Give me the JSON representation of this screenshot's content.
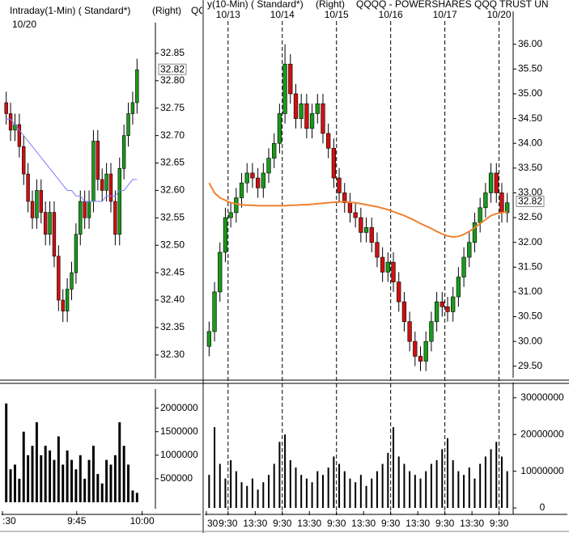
{
  "chart_data": [
    {
      "type": "candlestick",
      "title": "Intraday(1-Min) ( Standard*)",
      "scale_note": "(Right)",
      "symbol": "QQ",
      "date": "10/20",
      "open": [
        32.76,
        32.74,
        32.71,
        32.72,
        32.68,
        32.63,
        32.58,
        32.55,
        32.6,
        32.56,
        32.52,
        32.56,
        32.48,
        32.4,
        32.38,
        32.42,
        32.45,
        32.52,
        32.58,
        32.55,
        32.58,
        32.69,
        32.62,
        32.6,
        32.63,
        32.58,
        32.52,
        32.64,
        32.7,
        32.74,
        32.76
      ],
      "high": [
        32.78,
        32.76,
        32.74,
        32.74,
        32.7,
        32.65,
        32.6,
        32.62,
        32.62,
        32.58,
        32.58,
        32.58,
        32.5,
        32.42,
        32.44,
        32.47,
        32.54,
        32.6,
        32.6,
        32.6,
        32.71,
        32.71,
        32.64,
        32.65,
        32.65,
        32.6,
        32.66,
        32.72,
        32.76,
        32.78,
        32.84
      ],
      "low": [
        32.72,
        32.69,
        32.69,
        32.66,
        32.61,
        32.56,
        32.53,
        32.53,
        32.54,
        32.5,
        32.5,
        32.46,
        32.38,
        32.36,
        32.36,
        32.4,
        32.43,
        32.5,
        32.53,
        32.53,
        32.56,
        32.6,
        32.58,
        32.58,
        32.56,
        32.5,
        32.5,
        32.62,
        32.68,
        32.72,
        32.74
      ],
      "close": [
        32.74,
        32.71,
        32.72,
        32.68,
        32.63,
        32.58,
        32.55,
        32.6,
        32.56,
        32.52,
        32.56,
        32.48,
        32.4,
        32.38,
        32.42,
        32.45,
        32.52,
        32.58,
        32.55,
        32.58,
        32.69,
        32.62,
        32.6,
        32.63,
        32.58,
        32.52,
        32.64,
        32.7,
        32.74,
        32.76,
        32.82
      ],
      "ma": [
        32.73,
        32.73,
        32.72,
        32.71,
        32.7,
        32.69,
        32.68,
        32.67,
        32.66,
        32.65,
        32.64,
        32.63,
        32.62,
        32.61,
        32.6,
        32.6,
        32.59,
        32.59,
        32.58,
        32.58,
        32.58,
        32.58,
        32.58,
        32.59,
        32.59,
        32.59,
        32.6,
        32.6,
        32.61,
        32.62,
        32.62
      ],
      "ma_color": "#7a7aff",
      "up_color": "#1a9a1a",
      "down_color": "#d01010",
      "volume": [
        2100000,
        700000,
        800000,
        500000,
        1500000,
        1000000,
        1200000,
        1700000,
        1000000,
        1200000,
        1100000,
        900000,
        1400000,
        800000,
        1100000,
        900000,
        700000,
        1000000,
        500000,
        900000,
        1200000,
        600000,
        400000,
        900000,
        800000,
        1000000,
        1700000,
        1200000,
        800000,
        250000,
        200000
      ],
      "ylim": [
        32.26,
        32.9
      ],
      "yticks": [
        {
          "value": 32.3,
          "label": "32.30"
        },
        32.35,
        {
          "value": 32.4,
          "label": "32.40"
        },
        32.45,
        {
          "value": 32.5,
          "label": "32.50"
        },
        32.55,
        {
          "value": 32.6,
          "label": "32.60"
        },
        32.65,
        {
          "value": 32.7,
          "label": "32.70"
        },
        32.75,
        {
          "value": 32.8,
          "label": "32.80"
        },
        32.85
      ],
      "last": 32.82,
      "volume_ylim": [
        0,
        2200000
      ],
      "volume_ticks": [
        500000,
        1000000,
        1500000,
        2000000
      ],
      "x_labels": [
        ":30",
        "9:45",
        "10:00"
      ]
    },
    {
      "type": "candlestick",
      "title": "y(10-Min) ( Standard*)",
      "scale_note": "(Right)",
      "symbol": "QQQQ - POWERSHARES QQQ TRUST UN",
      "dates": [
        "10/13",
        "10/14",
        "10/15",
        "10/16",
        "10/17",
        "10/20"
      ],
      "open": [
        29.9,
        30.2,
        31.0,
        31.8,
        32.5,
        32.6,
        32.9,
        33.2,
        33.4,
        33.3,
        33.1,
        33.4,
        33.7,
        34.0,
        34.6,
        35.6,
        35.0,
        34.5,
        34.8,
        34.3,
        34.6,
        34.8,
        34.2,
        33.9,
        33.3,
        33.0,
        32.8,
        32.6,
        32.5,
        32.2,
        32.3,
        32.0,
        31.7,
        31.4,
        31.6,
        31.2,
        30.8,
        30.4,
        30.0,
        29.7,
        29.6,
        30.0,
        30.4,
        30.8,
        30.7,
        30.6,
        30.9,
        31.3,
        31.7,
        32.0,
        32.4,
        32.7,
        33.0,
        33.4,
        33.0,
        32.6
      ],
      "high": [
        30.4,
        31.2,
        32.0,
        32.7,
        32.8,
        33.1,
        33.4,
        33.6,
        33.6,
        33.5,
        33.6,
        33.9,
        34.2,
        34.8,
        36.0,
        35.8,
        35.2,
        35.0,
        35.0,
        34.8,
        35.0,
        35.0,
        34.4,
        34.1,
        33.5,
        33.2,
        33.0,
        32.8,
        32.7,
        32.5,
        32.5,
        32.2,
        31.9,
        31.8,
        31.8,
        31.4,
        31.0,
        30.6,
        30.2,
        29.9,
        30.2,
        30.6,
        31.0,
        31.0,
        30.9,
        31.1,
        31.5,
        31.9,
        32.2,
        32.6,
        32.9,
        33.2,
        33.6,
        33.6,
        33.2,
        33.0
      ],
      "low": [
        29.7,
        30.0,
        30.8,
        31.6,
        32.3,
        32.4,
        32.7,
        33.0,
        33.1,
        32.9,
        32.9,
        33.2,
        33.5,
        33.8,
        34.4,
        34.8,
        34.3,
        34.3,
        34.1,
        34.1,
        34.4,
        34.0,
        33.7,
        33.1,
        32.8,
        32.6,
        32.4,
        32.3,
        32.0,
        32.0,
        31.8,
        31.5,
        31.2,
        31.2,
        31.0,
        30.6,
        30.2,
        29.8,
        29.5,
        29.4,
        29.4,
        29.8,
        30.2,
        30.5,
        30.4,
        30.4,
        30.7,
        31.1,
        31.5,
        31.8,
        32.2,
        32.5,
        32.8,
        32.8,
        32.4,
        32.4
      ],
      "close": [
        30.2,
        31.0,
        31.8,
        32.5,
        32.6,
        32.9,
        33.2,
        33.4,
        33.3,
        33.1,
        33.4,
        33.7,
        34.0,
        34.6,
        35.6,
        35.0,
        34.5,
        34.8,
        34.3,
        34.6,
        34.8,
        34.2,
        33.9,
        33.3,
        33.0,
        32.8,
        32.6,
        32.5,
        32.2,
        32.3,
        32.0,
        31.7,
        31.4,
        31.6,
        31.2,
        30.8,
        30.4,
        30.0,
        29.7,
        29.6,
        30.0,
        30.4,
        30.8,
        30.7,
        30.6,
        30.9,
        31.3,
        31.7,
        32.0,
        32.4,
        32.7,
        33.0,
        33.4,
        33.0,
        32.6,
        32.8
      ],
      "ma": [
        33.2,
        33.0,
        32.9,
        32.85,
        32.8,
        32.78,
        32.76,
        32.75,
        32.75,
        32.74,
        32.74,
        32.74,
        32.74,
        32.74,
        32.74,
        32.75,
        32.75,
        32.76,
        32.76,
        32.77,
        32.78,
        32.79,
        32.8,
        32.81,
        32.82,
        32.82,
        32.81,
        32.8,
        32.78,
        32.76,
        32.74,
        32.72,
        32.69,
        32.66,
        32.62,
        32.58,
        32.54,
        32.49,
        32.44,
        32.38,
        32.33,
        32.28,
        32.22,
        32.17,
        32.13,
        32.11,
        32.12,
        32.16,
        32.22,
        32.3,
        32.38,
        32.46,
        32.54,
        32.58,
        32.6,
        32.62
      ],
      "ma_color": "#f08030",
      "up_color": "#1a9a1a",
      "down_color": "#d01010",
      "volume": [
        9000000,
        22000000,
        12000000,
        8000000,
        13000000,
        10000000,
        7000000,
        6000000,
        8000000,
        5000000,
        7000000,
        9000000,
        12000000,
        18000000,
        20000000,
        13000000,
        11000000,
        9000000,
        8000000,
        7000000,
        10000000,
        9000000,
        11000000,
        14000000,
        12000000,
        10000000,
        8000000,
        7000000,
        9000000,
        6000000,
        8000000,
        10000000,
        12000000,
        15000000,
        22000000,
        14000000,
        12000000,
        10000000,
        9000000,
        8000000,
        10000000,
        12000000,
        13000000,
        16000000,
        19000000,
        13000000,
        10000000,
        9000000,
        11000000,
        8000000,
        12000000,
        14000000,
        16000000,
        18000000,
        14000000,
        10000000
      ],
      "ylim": [
        29.3,
        36.6
      ],
      "yticks": [
        {
          "value": 29.5,
          "label": "29.50"
        },
        {
          "value": 30,
          "label": "30.00"
        },
        {
          "value": 30.5,
          "label": "30.50"
        },
        {
          "value": 31,
          "label": "31.00"
        },
        {
          "value": 31.5,
          "label": "31.50"
        },
        {
          "value": 32,
          "label": "32.00"
        },
        {
          "value": 32.5,
          "label": "32.50"
        },
        {
          "value": 33,
          "label": "33.00"
        },
        {
          "value": 33.5,
          "label": "33.50"
        },
        {
          "value": 34,
          "label": "34.00"
        },
        {
          "value": 34.5,
          "label": "34.50"
        },
        {
          "value": 35,
          "label": "35.00"
        },
        {
          "value": 35.5,
          "label": "35.50"
        },
        {
          "value": 36,
          "label": "36.00"
        }
      ],
      "last": 32.82,
      "volume_ylim": [
        0,
        31500000
      ],
      "volume_ticks": [
        0,
        10000000,
        20000000,
        30000000
      ],
      "x_labels": [
        "30",
        "9:30",
        "13:30",
        "9:30",
        "13:30",
        "9:30",
        "13:30",
        "9:30",
        "13:30",
        "9:30",
        "13:30",
        "9:30"
      ]
    }
  ]
}
